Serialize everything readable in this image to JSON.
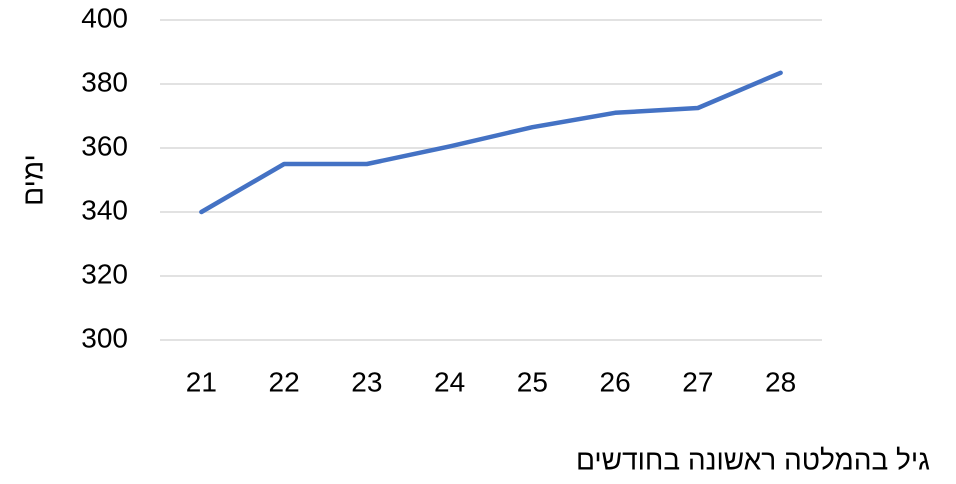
{
  "chart_data": {
    "type": "line",
    "x_label": "גיל בהמלטה ראשונה בחודשים",
    "y_label": "ימים",
    "categories": [
      "21",
      "22",
      "23",
      "24",
      "25",
      "26",
      "27",
      "28"
    ],
    "values": [
      340,
      355,
      355,
      360.5,
      366.5,
      371,
      372.5,
      383.5
    ],
    "color": "#4472c4",
    "ylim": [
      300,
      400
    ],
    "yticks": [
      300,
      320,
      340,
      360,
      380,
      400
    ],
    "grid": true
  }
}
